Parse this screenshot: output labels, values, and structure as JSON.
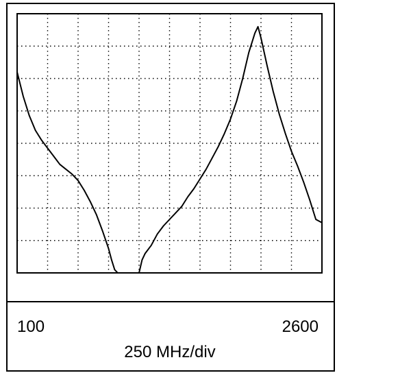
{
  "chart_data": {
    "type": "line",
    "title": "",
    "xlabel": "250 MHz/div",
    "ylabel": "",
    "x_start_label": "100",
    "x_end_label": "2600",
    "xlim": [
      100,
      2600
    ],
    "ylim": [
      0,
      8
    ],
    "grid": true,
    "grid_divisions": {
      "x": 10,
      "y": 8
    },
    "series": [
      {
        "segments": [
          {
            "x": [
              100,
              150,
              200,
              250,
              300,
              350,
              400,
              450,
              500,
              550,
              600,
              650,
              700,
              750,
              800,
              850,
              875,
              900,
              925
            ],
            "y": [
              6.2,
              5.45,
              4.85,
              4.4,
              4.1,
              3.85,
              3.6,
              3.35,
              3.2,
              3.05,
              2.85,
              2.55,
              2.2,
              1.8,
              1.3,
              0.75,
              0.4,
              0.1,
              0.0
            ]
          },
          {
            "x": [
              1100,
              1125,
              1150,
              1200,
              1250,
              1300,
              1350,
              1400,
              1450,
              1500,
              1550,
              1600,
              1650,
              1700,
              1750,
              1800,
              1850,
              1900,
              1950,
              2000,
              2050,
              2075,
              2100,
              2150,
              2200,
              2250,
              2300,
              2350,
              2400,
              2450,
              2500,
              2550,
              2600
            ],
            "y": [
              0.0,
              0.4,
              0.6,
              0.85,
              1.2,
              1.45,
              1.65,
              1.85,
              2.05,
              2.35,
              2.6,
              2.9,
              3.2,
              3.55,
              3.9,
              4.3,
              4.75,
              5.3,
              6.0,
              6.8,
              7.4,
              7.6,
              7.25,
              6.4,
              5.6,
              4.9,
              4.3,
              3.75,
              3.3,
              2.8,
              2.25,
              1.65,
              1.55
            ]
          }
        ]
      }
    ]
  }
}
